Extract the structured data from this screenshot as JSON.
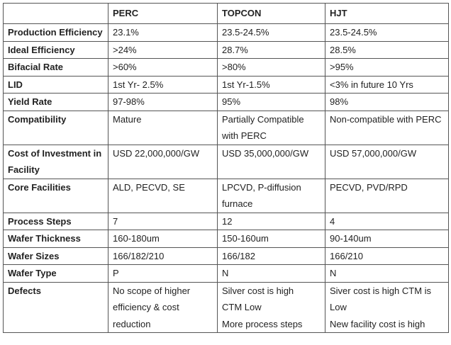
{
  "table": {
    "header": [
      "",
      "PERC",
      "TOPCON",
      "HJT"
    ],
    "rows": [
      [
        "Production Efficiency",
        "23.1%",
        "23.5-24.5%",
        "23.5-24.5%"
      ],
      [
        "Ideal Efficiency",
        ">24%",
        "28.7%",
        "28.5%"
      ],
      [
        "Bifacial Rate",
        ">60%",
        ">80%",
        ">95%"
      ],
      [
        "LID",
        "1st Yr- 2.5%",
        "1st Yr-1.5%",
        "<3% in future 10 Yrs"
      ],
      [
        "Yield Rate",
        "97-98%",
        "95%",
        "98%"
      ],
      [
        "Compatibility",
        "Mature",
        "Partially Compatible with PERC",
        "Non-compatible with PERC"
      ],
      [
        "Cost of Investment in Facility",
        "USD 22,000,000/GW",
        "USD 35,000,000/GW",
        "USD 57,000,000/GW"
      ],
      [
        "Core Facilities",
        "ALD, PECVD, SE",
        "LPCVD, P-diffusion furnace",
        "PECVD, PVD/RPD"
      ],
      [
        "Process Steps",
        "7",
        "12",
        "4"
      ],
      [
        "Wafer Thickness",
        "160-180um",
        "150-160um",
        "90-140um"
      ],
      [
        "Wafer Sizes",
        "166/182/210",
        "166/182",
        "166/210"
      ],
      [
        "Wafer Type",
        "P",
        "N",
        "N"
      ],
      [
        "Defects",
        "No scope of higher efficiency & cost reduction",
        "Silver cost is high\nCTM Low\nMore process steps",
        "Siver cost is high CTM is Low\nNew facility cost is high"
      ]
    ]
  }
}
